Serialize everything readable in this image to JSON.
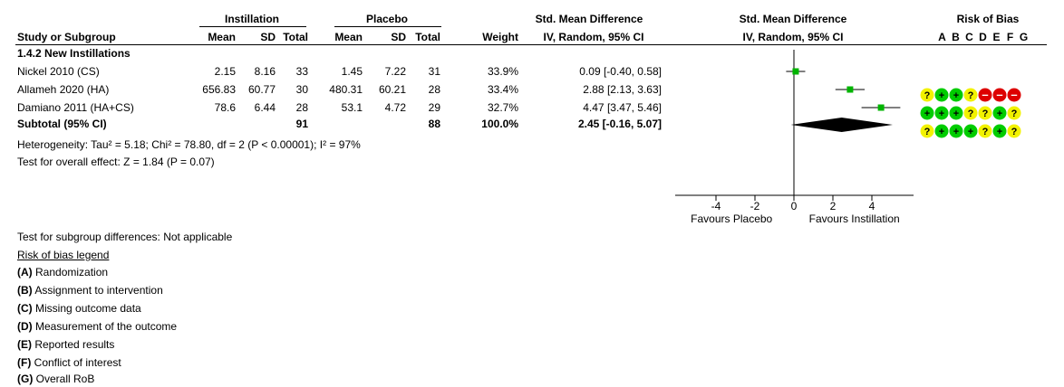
{
  "headers": {
    "group_exp": "Instillation",
    "group_ctrl": "Placebo",
    "effect_header": "Std. Mean Difference",
    "effect_header_plot": "Std. Mean Difference",
    "rob_header": "Risk of Bias",
    "study_col": "Study or Subgroup",
    "mean": "Mean",
    "sd": "SD",
    "total": "Total",
    "weight": "Weight",
    "method": "IV, Random, 95% CI",
    "method_plot": "IV, Random, 95% CI",
    "rob_letters": [
      "A",
      "B",
      "C",
      "D",
      "E",
      "F",
      "G"
    ]
  },
  "subgroup_title": "1.4.2 New Instillations",
  "studies": [
    {
      "name": "Nickel 2010 (CS)",
      "exp_mean": "2.15",
      "exp_sd": "8.16",
      "exp_total": "33",
      "ctrl_mean": "1.45",
      "ctrl_sd": "7.22",
      "ctrl_total": "31",
      "weight": "33.9%",
      "ci_text": "0.09 [-0.40, 0.58]",
      "rob": [
        "?",
        "+",
        "+",
        "?",
        "-",
        "-",
        "-"
      ]
    },
    {
      "name": "Allameh 2020 (HA)",
      "exp_mean": "656.83",
      "exp_sd": "60.77",
      "exp_total": "30",
      "ctrl_mean": "480.31",
      "ctrl_sd": "60.21",
      "ctrl_total": "28",
      "weight": "33.4%",
      "ci_text": "2.88 [2.13, 3.63]",
      "rob": [
        "+",
        "+",
        "+",
        "?",
        "?",
        "+",
        "?"
      ]
    },
    {
      "name": "Damiano 2011 (HA+CS)",
      "exp_mean": "78.6",
      "exp_sd": "6.44",
      "exp_total": "28",
      "ctrl_mean": "53.1",
      "ctrl_sd": "4.72",
      "ctrl_total": "29",
      "weight": "32.7%",
      "ci_text": "4.47 [3.47, 5.46]",
      "rob": [
        "?",
        "+",
        "+",
        "+",
        "?",
        "+",
        "?"
      ]
    }
  ],
  "subtotal": {
    "label": "Subtotal (95% CI)",
    "exp_total": "91",
    "ctrl_total": "88",
    "weight": "100.0%",
    "ci_text": "2.45 [-0.16, 5.07]"
  },
  "heterogeneity": "Heterogeneity: Tau² = 5.18; Chi² = 78.80, df = 2 (P < 0.00001); I² = 97%",
  "overall_test": "Test for overall effect: Z = 1.84 (P = 0.07)",
  "subgroup_test": "Test for subgroup differences: Not applicable",
  "legend": {
    "title": "Risk of bias legend",
    "items": [
      {
        "key": "(A)",
        "text": " Randomization"
      },
      {
        "key": "(B)",
        "text": " Assignment to intervention"
      },
      {
        "key": "(C)",
        "text": " Missing outcome data"
      },
      {
        "key": "(D)",
        "text": " Measurement of the outcome"
      },
      {
        "key": "(E)",
        "text": " Reported results"
      },
      {
        "key": "(F)",
        "text": " Conflict of interest"
      },
      {
        "key": "(G)",
        "text": " Overall RoB"
      }
    ]
  },
  "colors": {
    "green": "#00cc00",
    "yellow": "#f2f200",
    "red": "#dd0000",
    "marker": "#00b400",
    "diamond": "#000000"
  },
  "chart_data": {
    "type": "forest",
    "xlim": [
      -6,
      6
    ],
    "ticks": [
      -4,
      -2,
      0,
      2,
      4
    ],
    "favours_left": "Favours Placebo",
    "favours_right": "Favours Instillation",
    "points": [
      {
        "est": 0.09,
        "lo": -0.4,
        "hi": 0.58,
        "weight": 33.9
      },
      {
        "est": 2.88,
        "lo": 2.13,
        "hi": 3.63,
        "weight": 33.4
      },
      {
        "est": 4.47,
        "lo": 3.47,
        "hi": 5.46,
        "weight": 32.7
      }
    ],
    "pooled": {
      "est": 2.45,
      "lo": -0.16,
      "hi": 5.07
    }
  }
}
